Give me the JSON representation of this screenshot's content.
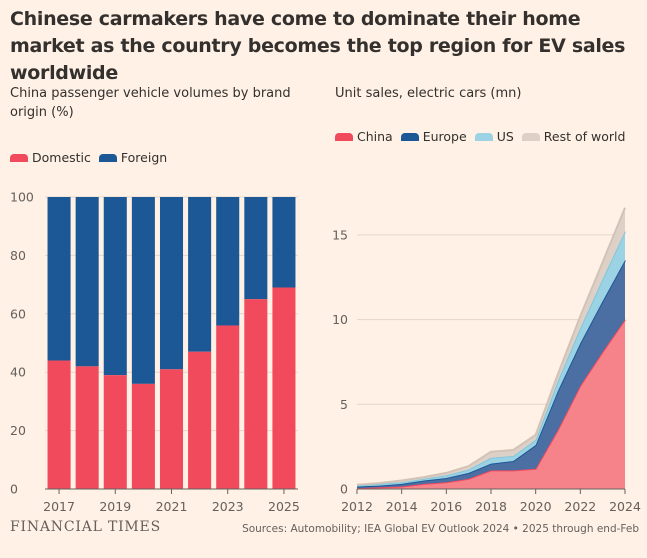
{
  "title": "Chinese carmakers have come to dominate their home market as the country becomes the top region for EV sales worldwide",
  "footer": {
    "logo": "FINANCIAL TIMES",
    "source": "Sources: Automobility; IEA Global EV Outlook 2024 • 2025 through end-Feb"
  },
  "colors": {
    "background": "#fff1e5",
    "domestic": "#f04a5c",
    "foreign": "#1d5896",
    "china": "#f7838a",
    "europe": "#4b6ea3",
    "us": "#9cd3e4",
    "rest_of_world": "#ddd1c7"
  },
  "chart_data": [
    {
      "type": "bar",
      "title": "China passenger vehicle volumes by brand origin (%)",
      "categories": [
        "2017",
        "2018",
        "2019",
        "2020",
        "2021",
        "2022",
        "2023",
        "2024",
        "2025"
      ],
      "tick_labels": [
        "2017",
        "2019",
        "2021",
        "2023",
        "2025"
      ],
      "series": [
        {
          "name": "Domestic",
          "values": [
            44,
            42,
            39,
            36,
            41,
            47,
            56,
            65,
            69
          ]
        },
        {
          "name": "Foreign",
          "values": [
            56,
            58,
            61,
            64,
            59,
            53,
            44,
            35,
            31
          ]
        }
      ],
      "stacked": true,
      "ylim": [
        0,
        100
      ],
      "yticks": [
        0,
        20,
        40,
        60,
        80,
        100
      ],
      "legend_position": "top-left"
    },
    {
      "type": "area",
      "title": "Unit sales, electric cars (mn)",
      "x": [
        2012,
        2013,
        2014,
        2015,
        2016,
        2017,
        2018,
        2019,
        2020,
        2021,
        2022,
        2023,
        2024
      ],
      "xticks": [
        2012,
        2014,
        2016,
        2018,
        2020,
        2022,
        2024
      ],
      "series": [
        {
          "name": "China",
          "values": [
            0.05,
            0.1,
            0.15,
            0.3,
            0.4,
            0.6,
            1.1,
            1.1,
            1.2,
            3.5,
            6.1,
            8.1,
            10.0
          ]
        },
        {
          "name": "Europe",
          "values": [
            0.1,
            0.1,
            0.15,
            0.2,
            0.25,
            0.35,
            0.4,
            0.55,
            1.4,
            2.3,
            2.5,
            3.0,
            3.5
          ]
        },
        {
          "name": "US",
          "values": [
            0.05,
            0.1,
            0.1,
            0.1,
            0.15,
            0.2,
            0.35,
            0.3,
            0.3,
            0.6,
            0.9,
            1.3,
            1.7
          ]
        },
        {
          "name": "Rest of world",
          "values": [
            0.05,
            0.05,
            0.1,
            0.1,
            0.15,
            0.2,
            0.35,
            0.35,
            0.3,
            0.4,
            0.7,
            1.0,
            1.4
          ]
        }
      ],
      "stacked": true,
      "ylim": [
        0,
        17
      ],
      "yticks": [
        0,
        5,
        10,
        15
      ],
      "legend_position": "top-left"
    }
  ]
}
